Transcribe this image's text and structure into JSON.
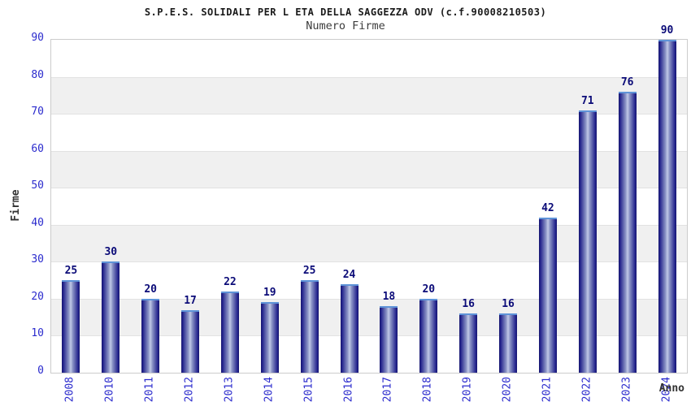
{
  "title": "S.P.E.S. SOLIDALI PER L ETA DELLA SAGGEZZA ODV (c.f.90008210503)",
  "subtitle": "Numero Firme",
  "chart_data": {
    "type": "bar",
    "title": "S.P.E.S. SOLIDALI PER L ETA DELLA SAGGEZZA ODV (c.f.90008210503)",
    "subtitle": "Numero Firme",
    "xlabel": "Anno",
    "ylabel": "Firme",
    "categories": [
      "2008",
      "2010",
      "2011",
      "2012",
      "2013",
      "2014",
      "2015",
      "2016",
      "2017",
      "2018",
      "2019",
      "2020",
      "2021",
      "2022",
      "2023",
      "2024"
    ],
    "values": [
      25,
      30,
      20,
      17,
      22,
      19,
      25,
      24,
      18,
      20,
      16,
      16,
      42,
      71,
      76,
      90
    ],
    "ylim": [
      0,
      90
    ],
    "yticks": [
      0,
      10,
      20,
      30,
      40,
      50,
      60,
      70,
      80,
      90
    ],
    "grid": true,
    "legend": false,
    "alternating_bands": true
  },
  "colors": {
    "tick_label": "#2B2BCD",
    "value_label": "#0B0B78",
    "bar_edge": "#17176E",
    "bar_dark": "#23238C",
    "bar_light": "#8F98C8",
    "bar_mid": "#C2C9E8",
    "bar_top_border": "#5E93D8",
    "band_gray": "#F0F0F0",
    "gridline": "#E2E2E2",
    "plot_border": "#CCCCCC",
    "title_color": "#1A1A1A",
    "subtitle_color": "#3C3C3C",
    "axis_title_color": "#333333",
    "background": "#FFFFFF"
  }
}
